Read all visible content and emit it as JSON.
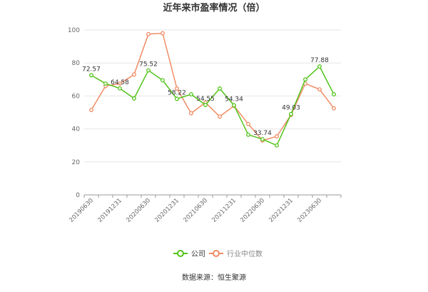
{
  "chart_data": {
    "type": "line",
    "title": "近年来市盈率情况（倍）",
    "x": [
      "20190630",
      "20190930",
      "20191231",
      "20200331",
      "20200630",
      "20200930",
      "20201231",
      "20210331",
      "20210630",
      "20210930",
      "20211231",
      "20220331",
      "20220630",
      "20220930",
      "20221231",
      "20230331",
      "20230630",
      "20230930"
    ],
    "x_tick_labels": [
      "20190630",
      "20191231",
      "20200630",
      "20201231",
      "20210630",
      "20211231",
      "20220630",
      "20221231",
      "20230630"
    ],
    "ylim": [
      0,
      100
    ],
    "y_ticks": [
      0,
      20,
      40,
      60,
      80,
      100
    ],
    "series": [
      {
        "name": "公司",
        "color": "#52c41a",
        "values": [
          72.57,
          67.5,
          64.58,
          58.5,
          75.52,
          69.5,
          58.22,
          61.0,
          54.55,
          64.5,
          54.34,
          36.5,
          33.74,
          30.0,
          49.03,
          70.0,
          77.88,
          61.0
        ]
      },
      {
        "name": "行业中位数",
        "color": "#f08c64",
        "values": [
          51.5,
          66.0,
          67.5,
          73.0,
          97.5,
          98.0,
          64.5,
          49.5,
          56.0,
          47.5,
          54.0,
          43.0,
          33.0,
          35.5,
          48.5,
          67.5,
          64.0,
          52.5
        ]
      }
    ],
    "data_labels": [
      {
        "index": 0,
        "text": "72.57"
      },
      {
        "index": 2,
        "text": "64.58"
      },
      {
        "index": 4,
        "text": "75.52"
      },
      {
        "index": 6,
        "text": "58.22"
      },
      {
        "index": 8,
        "text": "54.55"
      },
      {
        "index": 10,
        "text": "54.34"
      },
      {
        "index": 12,
        "text": "33.74"
      },
      {
        "index": 14,
        "text": "49.03"
      },
      {
        "index": 16,
        "text": "77.88"
      }
    ],
    "legend_position": "bottom-center",
    "grid": true
  },
  "footer": {
    "source": "数据来源：恒生聚源"
  }
}
